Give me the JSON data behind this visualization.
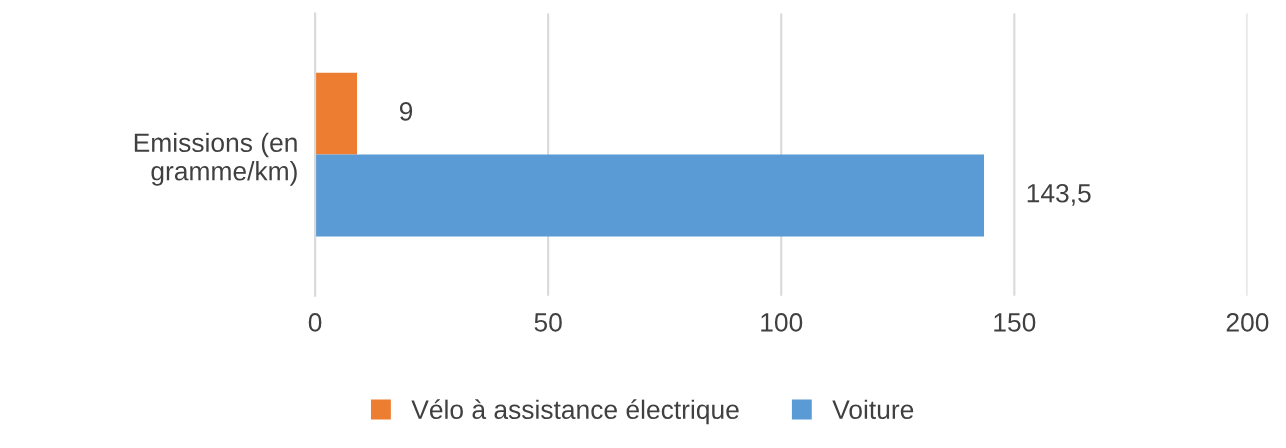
{
  "chart_data": {
    "type": "bar",
    "orientation": "horizontal",
    "categories": [
      "Emissions (en\ngramme/km)"
    ],
    "series": [
      {
        "name": "Vélo à assistance électrique",
        "color": "#ed7d31",
        "values": [
          9
        ],
        "value_labels": [
          "9"
        ]
      },
      {
        "name": "Voiture",
        "color": "#5b9bd5",
        "values": [
          143.5
        ],
        "value_labels": [
          "143,5"
        ]
      }
    ],
    "xlim": [
      0,
      200
    ],
    "xticks": [
      0,
      50,
      100,
      150,
      200
    ],
    "grid": "x",
    "legend": "bottom"
  }
}
